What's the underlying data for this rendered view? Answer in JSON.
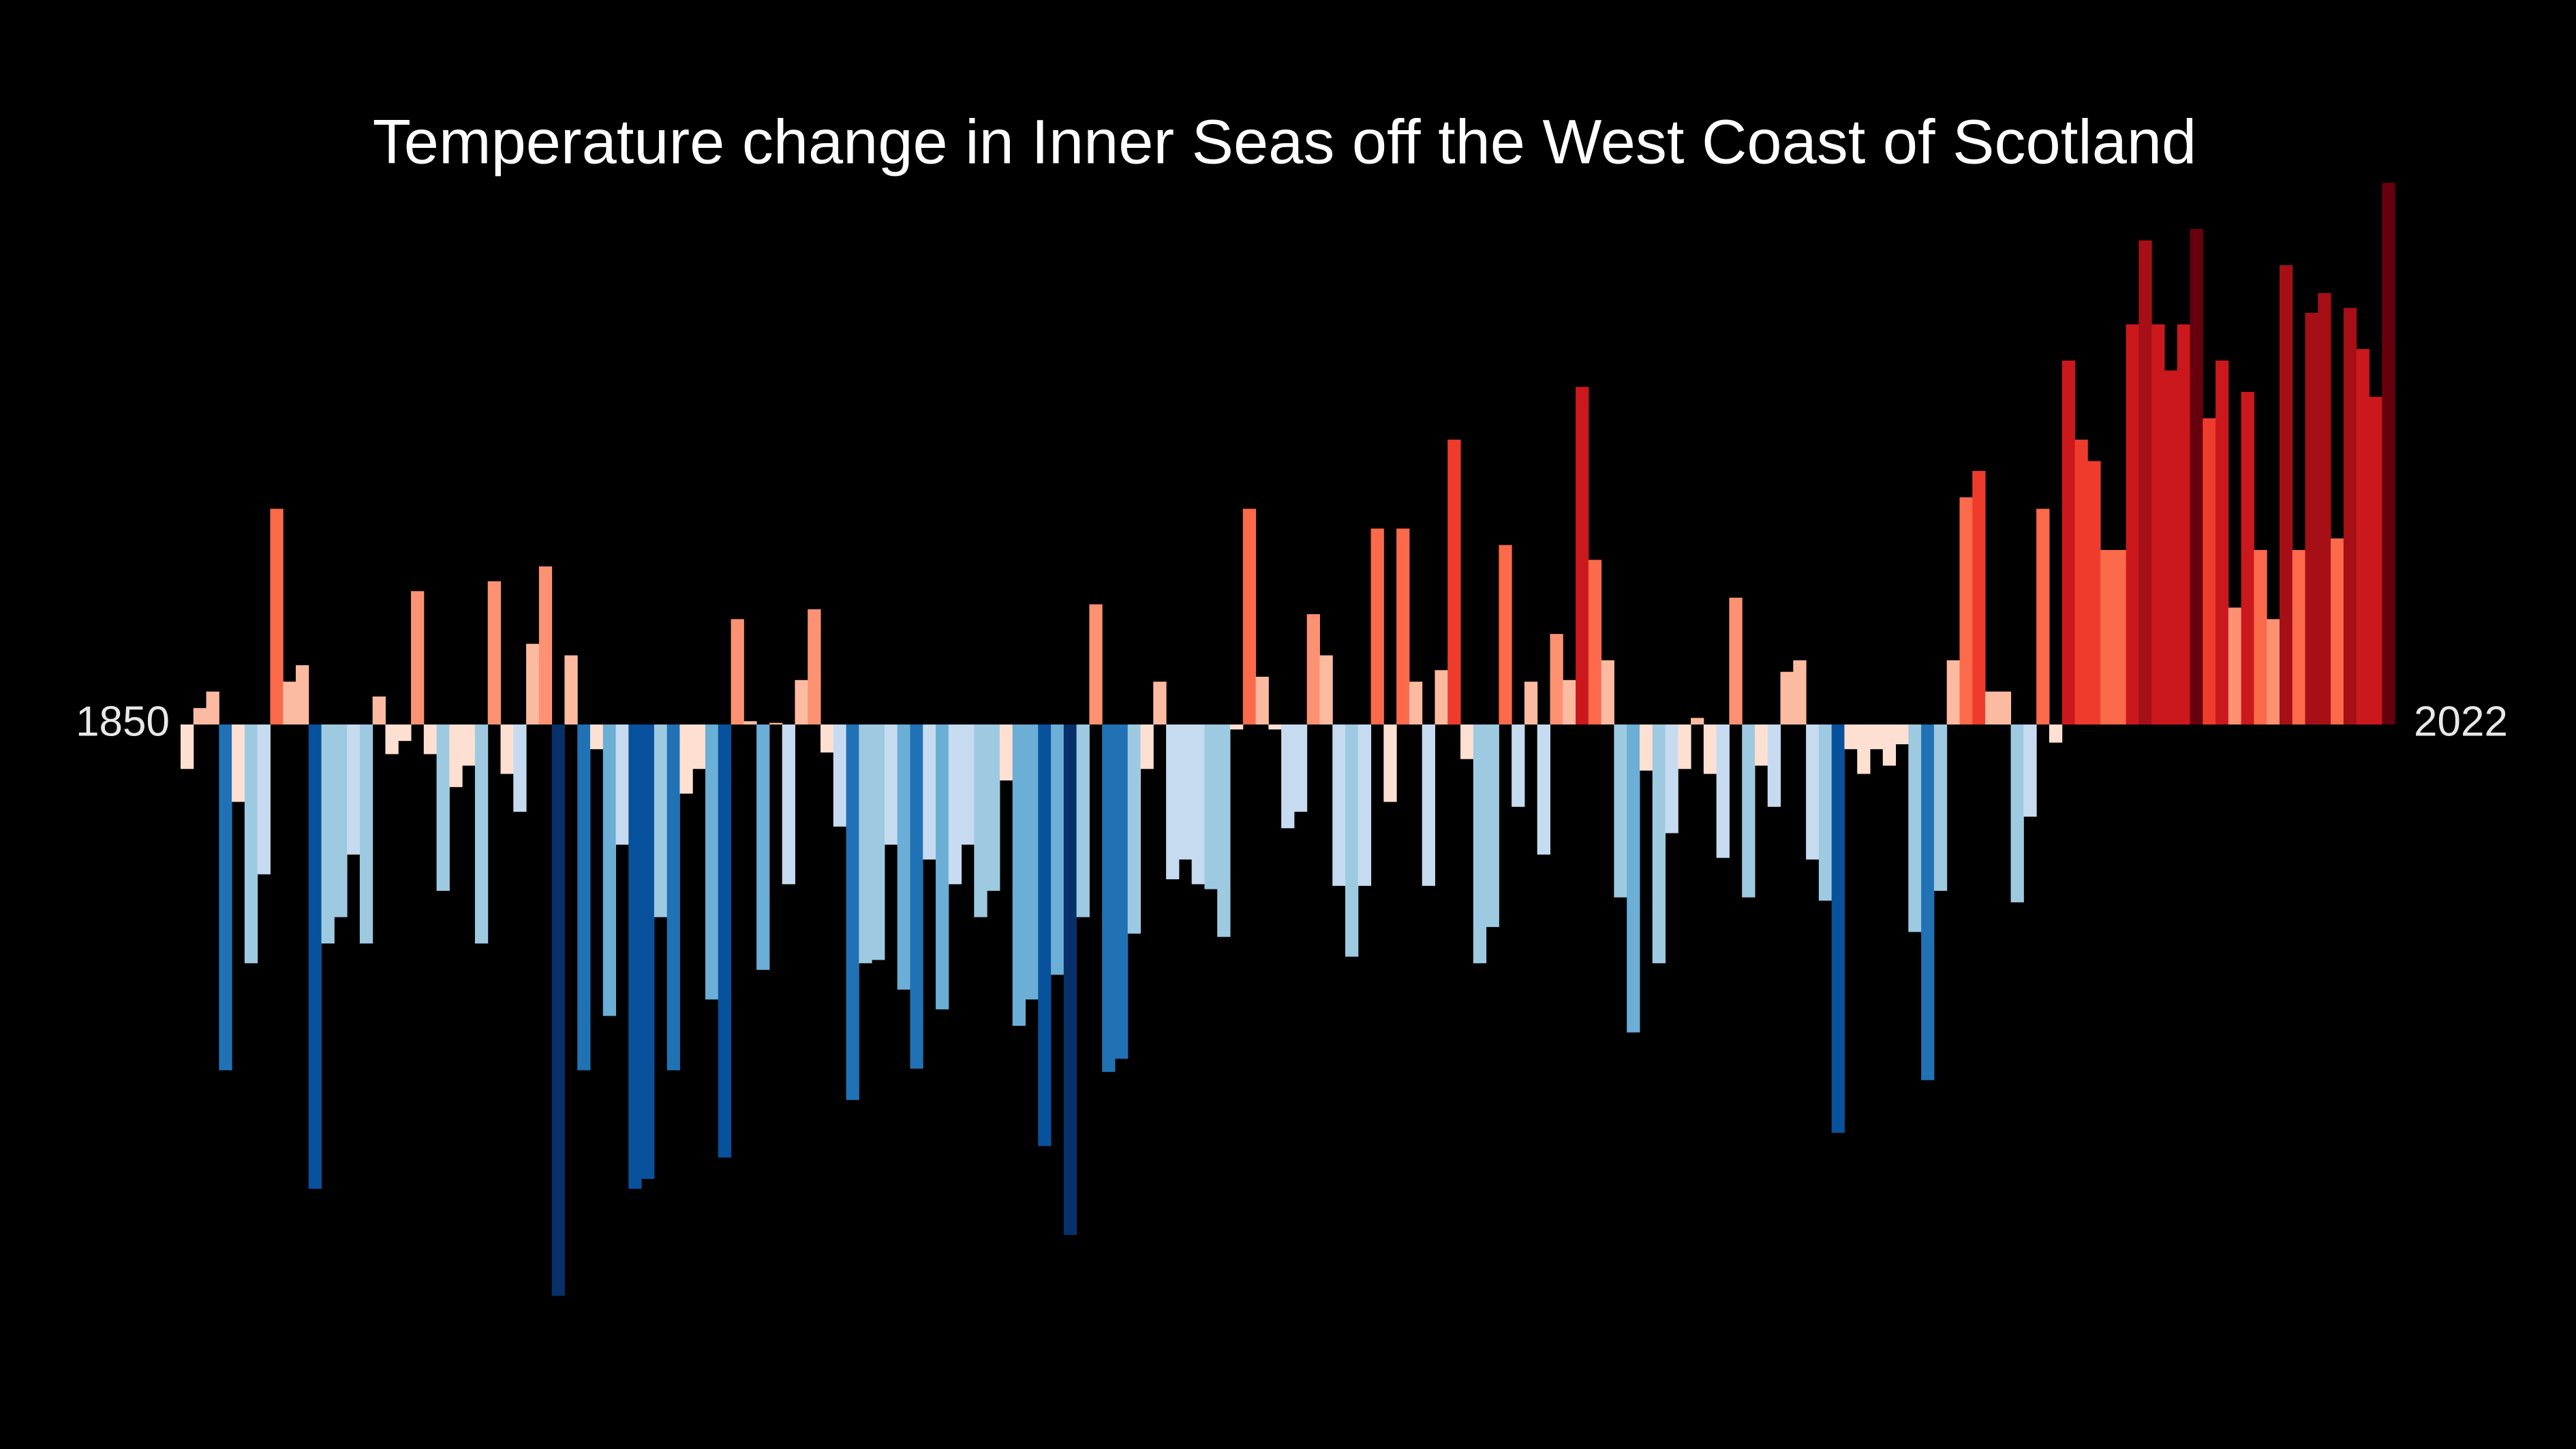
{
  "chart_data": {
    "type": "bar",
    "title": "Temperature change in Inner Seas off the West Coast of Scotland",
    "x": [
      1850,
      1851,
      1852,
      1853,
      1854,
      1855,
      1856,
      1857,
      1858,
      1859,
      1860,
      1861,
      1862,
      1863,
      1864,
      1865,
      1866,
      1867,
      1868,
      1869,
      1870,
      1871,
      1872,
      1873,
      1874,
      1875,
      1876,
      1877,
      1878,
      1879,
      1880,
      1881,
      1882,
      1883,
      1884,
      1885,
      1886,
      1887,
      1888,
      1889,
      1890,
      1891,
      1892,
      1893,
      1894,
      1895,
      1896,
      1897,
      1898,
      1899,
      1900,
      1901,
      1902,
      1903,
      1904,
      1905,
      1906,
      1907,
      1908,
      1909,
      1910,
      1911,
      1912,
      1913,
      1914,
      1915,
      1916,
      1917,
      1918,
      1919,
      1920,
      1921,
      1922,
      1923,
      1924,
      1925,
      1926,
      1927,
      1928,
      1929,
      1930,
      1931,
      1932,
      1933,
      1934,
      1935,
      1936,
      1937,
      1938,
      1939,
      1940,
      1941,
      1942,
      1943,
      1944,
      1945,
      1946,
      1947,
      1948,
      1949,
      1950,
      1951,
      1952,
      1953,
      1954,
      1955,
      1956,
      1957,
      1958,
      1959,
      1960,
      1961,
      1962,
      1963,
      1964,
      1965,
      1966,
      1967,
      1968,
      1969,
      1970,
      1971,
      1972,
      1973,
      1974,
      1975,
      1976,
      1977,
      1978,
      1979,
      1980,
      1981,
      1982,
      1983,
      1984,
      1985,
      1986,
      1987,
      1988,
      1989,
      1990,
      1991,
      1992,
      1993,
      1994,
      1995,
      1996,
      1997,
      1998,
      1999,
      2000,
      2001,
      2002,
      2003,
      2004,
      2005,
      2006,
      2007,
      2008,
      2009,
      2010,
      2011,
      2012,
      2013,
      2014,
      2015,
      2016,
      2017,
      2018,
      2019,
      2020,
      2021,
      2022
    ],
    "values": [
      -0.27,
      0.1,
      0.2,
      -2.1,
      -0.47,
      -1.45,
      -0.91,
      1.31,
      0.26,
      0.36,
      -2.82,
      -1.33,
      -1.17,
      -0.79,
      -1.33,
      0.17,
      -0.18,
      -0.1,
      0.81,
      -0.18,
      -1.01,
      -0.38,
      -0.25,
      -1.33,
      0.87,
      -0.3,
      -0.53,
      0.49,
      0.96,
      -3.47,
      0.42,
      -2.1,
      -0.15,
      -1.77,
      -0.73,
      -2.82,
      -2.76,
      -1.17,
      -2.1,
      -0.42,
      -0.27,
      -1.67,
      -2.63,
      0.64,
      0.02,
      -1.49,
      0.01,
      -0.97,
      0.27,
      0.7,
      -0.17,
      -0.62,
      -2.28,
      -1.45,
      -1.43,
      -0.73,
      -1.61,
      -2.09,
      -0.82,
      -1.73,
      -0.97,
      -0.73,
      -1.17,
      -1.01,
      -0.34,
      -1.83,
      -1.67,
      -2.56,
      -1.52,
      -3.1,
      -1.17,
      0.73,
      -2.11,
      -2.03,
      -1.27,
      -0.27,
      0.26,
      -0.94,
      -0.82,
      -0.97,
      -1.0,
      -1.29,
      -0.03,
      1.31,
      0.29,
      -0.03,
      -0.63,
      -0.53,
      0.67,
      0.42,
      -0.98,
      -1.41,
      -0.98,
      1.19,
      -0.47,
      1.19,
      0.26,
      -0.98,
      0.33,
      1.73,
      -0.21,
      -1.45,
      -1.23,
      1.09,
      -0.5,
      0.26,
      -0.79,
      0.55,
      0.27,
      2.05,
      1.0,
      0.39,
      -1.05,
      -1.87,
      -0.28,
      -1.45,
      -0.66,
      -0.27,
      0.04,
      -0.3,
      -0.81,
      0.77,
      -1.05,
      -0.25,
      -0.5,
      0.32,
      0.39,
      -0.82,
      -1.07,
      -2.48,
      -0.15,
      -0.3,
      -0.15,
      -0.25,
      -0.12,
      -1.26,
      -2.16,
      -1.01,
      0.39,
      1.38,
      1.54,
      0.2,
      0.2,
      -1.08,
      -0.56,
      1.31,
      -0.11,
      2.21,
      1.73,
      1.6,
      1.06,
      1.06,
      2.43,
      2.94,
      2.43,
      2.15,
      2.43,
      3.01,
      1.86,
      2.21,
      0.71,
      2.02,
      1.06,
      0.64,
      2.79,
      1.06,
      2.5,
      2.62,
      1.13,
      2.53,
      2.28,
      1.99,
      3.29
    ],
    "ylim": [
      -4.4,
      4.4
    ],
    "colormap": [
      "#08306b",
      "#08519c",
      "#2171b5",
      "#6baed6",
      "#9ecae1",
      "#c6dbef",
      "#fee0d2",
      "#fcbba1",
      "#fc9272",
      "#fb6a4a",
      "#ef3b2c",
      "#cb181d",
      "#a50f15",
      "#67000d"
    ]
  }
}
